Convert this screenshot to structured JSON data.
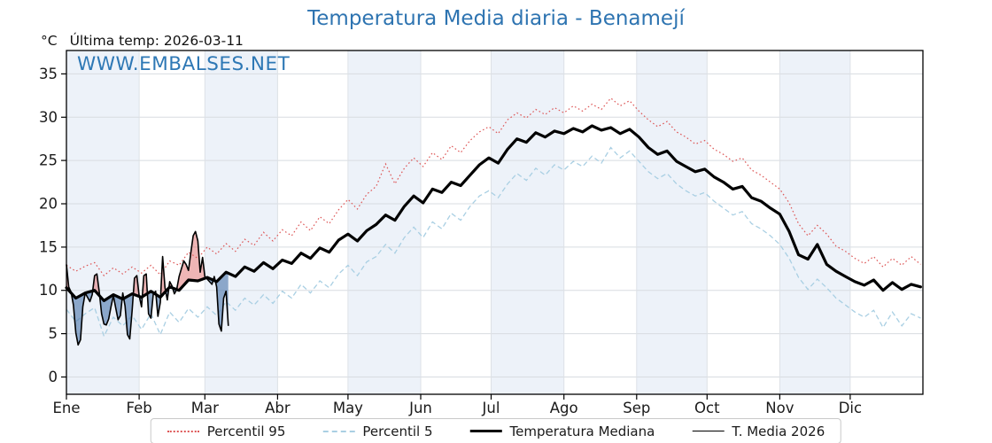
{
  "title": "Temperatura Media diaria - Benamejí",
  "subtitle": {
    "unit": "°C",
    "last_temp": "Última temp: 2026-03-11"
  },
  "watermark": "WWW.EMBALSES.NET",
  "legend": [
    {
      "id": "percentil95",
      "label": "Percentil 95",
      "color": "#dd5656",
      "style": "dotted",
      "weight": 2
    },
    {
      "id": "percentil5",
      "label": "Percentil 5",
      "color": "#a9cfe3",
      "style": "dashed",
      "weight": 2
    },
    {
      "id": "mediana",
      "label": "Temperatura Mediana",
      "color": "#000000",
      "style": "solid",
      "weight": 3.5
    },
    {
      "id": "t2026",
      "label": "T. Media 2026",
      "color": "#000000",
      "style": "solid",
      "weight": 1.5
    }
  ],
  "colors": {
    "title": "#2e74b1",
    "watermark": "#2e78b5",
    "band_shaded": "#edf2f9",
    "band_plain": "#ffffff",
    "grid_h": "#d8dce1",
    "grid_v": "#dde1e6",
    "frame": "#000000",
    "p95_line": "#dd5656",
    "p5_line": "#a9cfe3",
    "median_line": "#000000",
    "t2026_line": "#000000",
    "fill_above": "rgba(219,90,90,0.45)",
    "fill_below": "rgba(74,117,170,0.6)",
    "tick_text": "#1a1a1a"
  },
  "chart_data": {
    "type": "line",
    "title": "Temperatura Media diaria - Benamejí",
    "ylabel": "°C",
    "ylim": [
      -2,
      37.7
    ],
    "yticks": [
      0,
      5,
      10,
      15,
      20,
      25,
      30,
      35
    ],
    "x_unit": "day_of_year",
    "xlim_days": [
      0,
      365
    ],
    "month_labels": [
      "Ene",
      "Feb",
      "Mar",
      "Abr",
      "May",
      "Jun",
      "Jul",
      "Ago",
      "Sep",
      "Oct",
      "Nov",
      "Dic"
    ],
    "month_days": [
      31,
      28,
      31,
      30,
      31,
      30,
      31,
      31,
      30,
      31,
      30,
      31
    ],
    "grid": true,
    "legend_position": "bottom-center",
    "series": [
      {
        "name": "Percentil 95",
        "x_start": 0,
        "x_step": 4,
        "values": [
          12.9,
          12.2,
          12.8,
          13.2,
          11.7,
          12.6,
          11.9,
          12.7,
          12.0,
          12.9,
          11.8,
          13.4,
          12.9,
          14.4,
          13.7,
          15.0,
          14.2,
          15.4,
          14.5,
          15.9,
          15.2,
          16.7,
          15.7,
          17.0,
          16.3,
          17.9,
          16.9,
          18.5,
          17.7,
          19.3,
          20.5,
          19.4,
          21.1,
          22.0,
          24.6,
          22.3,
          24.1,
          25.3,
          24.3,
          25.9,
          25.1,
          26.7,
          25.9,
          27.3,
          28.3,
          28.9,
          28.1,
          29.7,
          30.5,
          29.9,
          30.9,
          30.3,
          31.1,
          30.5,
          31.3,
          30.7,
          31.5,
          30.9,
          32.2,
          31.3,
          31.9,
          30.7,
          29.7,
          28.9,
          29.5,
          28.3,
          27.7,
          26.9,
          27.3,
          26.3,
          25.7,
          24.9,
          25.3,
          23.9,
          23.3,
          22.5,
          21.7,
          20.1,
          17.7,
          16.3,
          17.5,
          16.5,
          15.1,
          14.5,
          13.7,
          13.1,
          13.9,
          12.7,
          13.7,
          12.9,
          13.9,
          13.0
        ]
      },
      {
        "name": "Percentil 5",
        "x_start": 0,
        "x_step": 4,
        "values": [
          7.8,
          6.4,
          7.3,
          8.0,
          4.7,
          6.9,
          5.9,
          7.1,
          5.5,
          7.3,
          4.9,
          7.5,
          6.3,
          7.9,
          6.9,
          8.1,
          7.1,
          8.7,
          7.7,
          9.1,
          8.3,
          9.5,
          8.5,
          9.9,
          9.1,
          10.7,
          9.7,
          11.1,
          10.3,
          11.9,
          12.9,
          11.7,
          13.3,
          13.9,
          15.3,
          14.3,
          16.1,
          17.3,
          16.1,
          17.9,
          17.1,
          18.9,
          18.1,
          19.7,
          20.9,
          21.5,
          20.7,
          22.3,
          23.5,
          22.7,
          24.1,
          23.3,
          24.5,
          23.9,
          24.9,
          24.3,
          25.5,
          24.7,
          26.5,
          25.3,
          26.1,
          24.9,
          23.7,
          22.9,
          23.5,
          22.3,
          21.5,
          20.9,
          21.3,
          20.3,
          19.5,
          18.7,
          19.1,
          17.7,
          17.1,
          16.3,
          15.3,
          13.7,
          11.5,
          10.1,
          11.3,
          10.3,
          9.1,
          8.3,
          7.5,
          6.9,
          7.7,
          5.7,
          7.5,
          5.9,
          7.3,
          6.8
        ]
      },
      {
        "name": "Temperatura Mediana",
        "x_start": 0,
        "x_step": 4,
        "values": [
          10.3,
          9.1,
          9.7,
          10.0,
          8.8,
          9.5,
          9.0,
          9.6,
          9.2,
          9.9,
          9.2,
          10.4,
          10.0,
          11.2,
          11.1,
          11.5,
          11.0,
          12.1,
          11.6,
          12.7,
          12.2,
          13.2,
          12.5,
          13.5,
          13.1,
          14.3,
          13.7,
          14.9,
          14.4,
          15.8,
          16.5,
          15.7,
          16.9,
          17.6,
          18.7,
          18.1,
          19.7,
          20.9,
          20.1,
          21.7,
          21.3,
          22.5,
          22.1,
          23.3,
          24.5,
          25.3,
          24.7,
          26.3,
          27.5,
          27.1,
          28.2,
          27.7,
          28.4,
          28.1,
          28.7,
          28.3,
          29.0,
          28.5,
          28.8,
          28.1,
          28.6,
          27.7,
          26.5,
          25.7,
          26.1,
          24.9,
          24.3,
          23.7,
          24.0,
          23.1,
          22.5,
          21.7,
          22.0,
          20.7,
          20.3,
          19.5,
          18.8,
          16.8,
          14.1,
          13.6,
          15.3,
          13.0,
          12.2,
          11.6,
          11.0,
          10.6,
          11.2,
          10.0,
          10.9,
          10.1,
          10.7,
          10.4
        ]
      },
      {
        "name": "T. Media 2026",
        "x_start": 0,
        "x_step": 1,
        "last_date": "2026-03-11",
        "values": [
          13.0,
          10.4,
          9.8,
          8.3,
          5.1,
          3.7,
          4.3,
          8.1,
          9.7,
          9.2,
          8.7,
          9.5,
          11.7,
          11.9,
          9.8,
          7.3,
          6.1,
          6.0,
          6.7,
          8.1,
          9.4,
          8.0,
          6.6,
          7.1,
          9.7,
          8.2,
          4.9,
          4.4,
          7.7,
          11.4,
          11.7,
          9.4,
          8.1,
          11.7,
          11.9,
          7.3,
          6.8,
          9.5,
          9.9,
          7.0,
          8.6,
          13.9,
          10.3,
          8.9,
          11.0,
          10.5,
          9.6,
          10.1,
          11.6,
          12.5,
          13.4,
          13.0,
          12.3,
          14.3,
          16.3,
          16.8,
          15.7,
          12.1,
          13.8,
          11.6,
          11.3,
          11.0,
          10.7,
          11.6,
          10.4,
          6.1,
          5.3,
          9.1,
          9.9,
          5.9
        ]
      }
    ],
    "fills": {
      "above": "T. Media 2026 > Temperatura Mediana",
      "below": "T. Media 2026 < Temperatura Mediana"
    }
  }
}
